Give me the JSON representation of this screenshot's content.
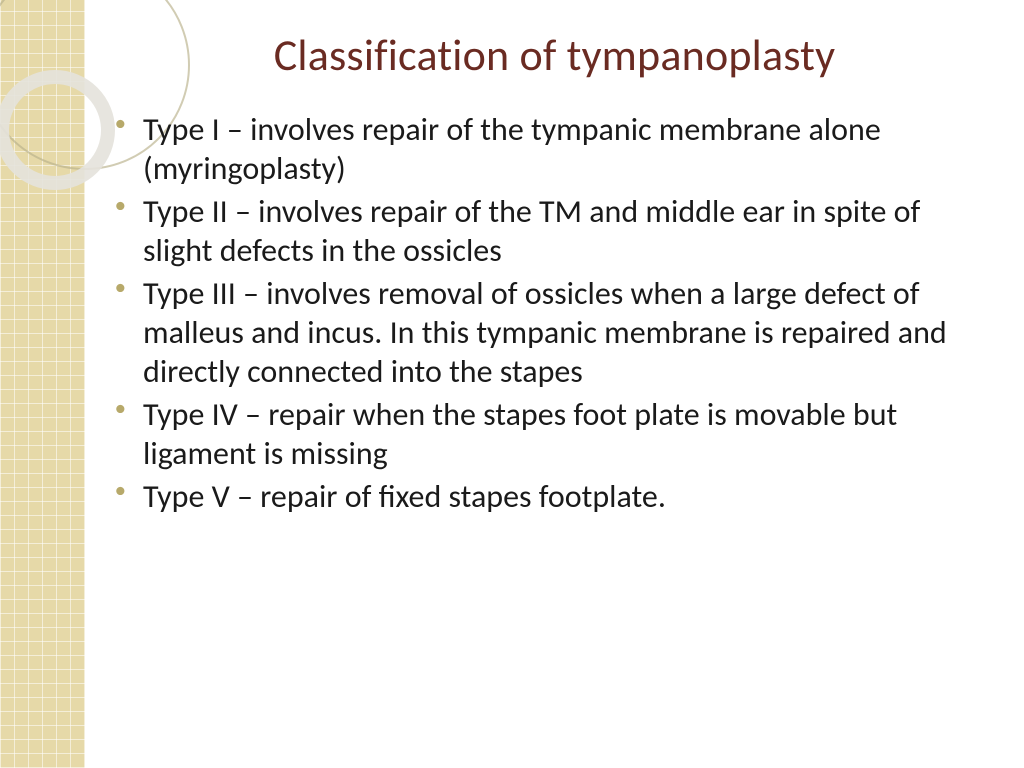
{
  "slide": {
    "title": "Classification of tympanoplasty",
    "title_color": "#6a2b22",
    "title_fontsize": 44,
    "body_color": "#1a1a1a",
    "body_fontsize": 32,
    "bullet_color": "#b7a96a",
    "bullets": [
      "Type I – involves repair of the tympanic membrane alone (myringoplasty)",
      "Type II – involves repair of the TM and middle ear in spite of slight defects in the ossicles",
      "Type III – involves removal of ossicles when a large defect of malleus and incus. In this tympanic membrane is repaired and directly connected into the stapes",
      "Type IV – repair when the stapes foot plate is movable but ligament is missing",
      "Type V – repair of fixed stapes footplate."
    ]
  },
  "decor": {
    "sidebar_bg": "#e6d9a8",
    "ring_large_color": "#b9b08a",
    "ring_small_color": "#e4e2db"
  }
}
